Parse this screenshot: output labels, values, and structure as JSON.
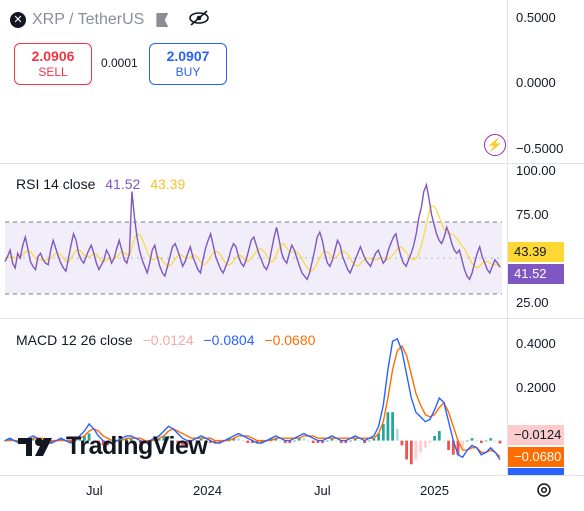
{
  "header": {
    "symbol": "XRP / TetherUS",
    "sell_price": "2.0906",
    "sell_label": "SELL",
    "spread": "0.0001",
    "buy_price": "2.0907",
    "buy_label": "BUY"
  },
  "price_scale": [
    "0.5000",
    "0.0000",
    "−0.5000"
  ],
  "rsi": {
    "label": "RSI 14 close",
    "value1": "41.52",
    "value2": "43.39",
    "scale": [
      "100.00",
      "75.00",
      "25.00"
    ],
    "badge1": "43.39",
    "badge2": "41.52"
  },
  "macd": {
    "label": "MACD 12 26 close",
    "value1": "−0.0124",
    "value2": "−0.0804",
    "value3": "−0.0680",
    "scale": [
      "0.4000",
      "0.2000"
    ],
    "badge1": "−0.0124",
    "badge2": "−0.0680"
  },
  "time_axis": [
    "Jul",
    "2024",
    "Jul",
    "2025"
  ],
  "brand": "TradingView",
  "colors": {
    "sell": "#f23645",
    "buy": "#2962ff",
    "rsi_line": "#7e57c2",
    "rsi_ma": "#fdd835",
    "macd_line": "#2962ff",
    "signal_line": "#ff6d00",
    "hist_pos": "#26a69a",
    "hist_neg": "#ef5350"
  },
  "chart_data": {
    "type": "line",
    "title": "XRP / TetherUS",
    "x_labels": [
      "Jul",
      "2024",
      "Jul",
      "2025"
    ],
    "rsi": {
      "name": "RSI 14 close",
      "ylim": [
        25,
        100
      ],
      "bands": [
        70,
        30
      ],
      "values": [
        45,
        48,
        52,
        44,
        41,
        50,
        47,
        55,
        60,
        53,
        45,
        42,
        40,
        48,
        50,
        46,
        44,
        43,
        52,
        58,
        53,
        48,
        44,
        41,
        39,
        47,
        55,
        62,
        58,
        50,
        46,
        44,
        48,
        52,
        55,
        50,
        44,
        40,
        43,
        46,
        52,
        49,
        44,
        47,
        53,
        58,
        52,
        46,
        44,
        50,
        88,
        72,
        60,
        52,
        46,
        42,
        38,
        44,
        52,
        55,
        48,
        42,
        38,
        36,
        42,
        48,
        54,
        56,
        52,
        47,
        42,
        45,
        50,
        54,
        48,
        44,
        40,
        38,
        46,
        53,
        58,
        62,
        55,
        48,
        44,
        40,
        38,
        42,
        46,
        52,
        56,
        54,
        48,
        44,
        42,
        46,
        52,
        58,
        60,
        55,
        50,
        46,
        42,
        40,
        44,
        52,
        60,
        66,
        58,
        50,
        46,
        44,
        50,
        55,
        52,
        47,
        42,
        38,
        36,
        34,
        38,
        45,
        52,
        60,
        63,
        58,
        50,
        44,
        42,
        46,
        52,
        58,
        55,
        48,
        44,
        40,
        38,
        42,
        46,
        50,
        54,
        50,
        46,
        44,
        42,
        46,
        50,
        52,
        48,
        44,
        46,
        52,
        56,
        60,
        62,
        54,
        48,
        44,
        42,
        46,
        50,
        55,
        62,
        72,
        78,
        88,
        92,
        84,
        74,
        68,
        62,
        58,
        56,
        60,
        66,
        62,
        56,
        52,
        50,
        52,
        46,
        40,
        36,
        34,
        38,
        44,
        50,
        54,
        48,
        44,
        40,
        38,
        42,
        46,
        44,
        41.5
      ],
      "ma_values": [
        47,
        47,
        48,
        48,
        47,
        47,
        48,
        49,
        51,
        52,
        51,
        49,
        47,
        46,
        46,
        46,
        46,
        46,
        47,
        49,
        50,
        50,
        49,
        47,
        45,
        45,
        47,
        50,
        52,
        52,
        51,
        49,
        48,
        48,
        49,
        50,
        49,
        47,
        45,
        45,
        46,
        47,
        47,
        47,
        48,
        50,
        51,
        50,
        49,
        49,
        55,
        60,
        62,
        61,
        58,
        54,
        50,
        47,
        46,
        47,
        48,
        47,
        45,
        43,
        42,
        43,
        45,
        47,
        49,
        49,
        48,
        47,
        47,
        48,
        49,
        48,
        46,
        44,
        43,
        44,
        46,
        49,
        51,
        51,
        50,
        48,
        45,
        43,
        43,
        44,
        46,
        48,
        49,
        48,
        46,
        45,
        46,
        48,
        50,
        52,
        53,
        52,
        50,
        47,
        45,
        45,
        48,
        52,
        55,
        56,
        54,
        52,
        51,
        51,
        51,
        50,
        48,
        45,
        42,
        40,
        39,
        40,
        43,
        46,
        49,
        51,
        51,
        50,
        48,
        47,
        48,
        50,
        51,
        51,
        50,
        48,
        45,
        43,
        42,
        43,
        45,
        46,
        47,
        47,
        46,
        46,
        46,
        47,
        47,
        47,
        46,
        47,
        49,
        51,
        53,
        54,
        53,
        51,
        49,
        47,
        46,
        47,
        49,
        54,
        60,
        67,
        74,
        79,
        79,
        77,
        73,
        69,
        65,
        63,
        62,
        62,
        61,
        59,
        57,
        55,
        53,
        50,
        47,
        44,
        42,
        41,
        42,
        44,
        45,
        45,
        44,
        43,
        43,
        43,
        43.4
      ]
    },
    "macd": {
      "name": "MACD 12 26 close",
      "ylim": [
        -0.12,
        0.48
      ],
      "macd_values": [
        0.0,
        0.01,
        0.0,
        -0.01,
        0.0,
        0.01,
        0.02,
        0.01,
        0.0,
        -0.01,
        -0.01,
        0.0,
        0.01,
        0.0,
        -0.01,
        0.0,
        0.02,
        0.04,
        0.07,
        0.05,
        0.02,
        0.0,
        -0.01,
        -0.01,
        0.0,
        0.01,
        0.02,
        0.02,
        0.01,
        0.0,
        -0.01,
        0.0,
        0.01,
        0.02,
        0.04,
        0.06,
        0.05,
        0.03,
        0.01,
        0.0,
        0.0,
        0.01,
        0.02,
        0.01,
        0.0,
        -0.01,
        -0.01,
        0.0,
        0.01,
        0.02,
        0.03,
        0.02,
        0.01,
        0.0,
        -0.01,
        -0.01,
        0.0,
        0.01,
        0.02,
        0.01,
        0.0,
        0.0,
        0.01,
        0.02,
        0.03,
        0.02,
        0.01,
        0.0,
        0.0,
        0.01,
        0.02,
        0.01,
        0.0,
        0.0,
        0.01,
        0.02,
        0.01,
        0.0,
        0.01,
        0.02,
        0.06,
        0.15,
        0.3,
        0.42,
        0.43,
        0.38,
        0.28,
        0.18,
        0.12,
        0.1,
        0.08,
        0.09,
        0.13,
        0.18,
        0.16,
        0.08,
        0.0,
        -0.06,
        -0.07,
        -0.04,
        -0.02,
        -0.03,
        -0.06,
        -0.05,
        -0.03,
        -0.05,
        -0.0804
      ],
      "signal_values": [
        0.0,
        0.0,
        0.0,
        0.0,
        0.0,
        0.0,
        0.01,
        0.01,
        0.01,
        0.0,
        0.0,
        0.0,
        0.0,
        0.0,
        0.0,
        0.0,
        0.01,
        0.02,
        0.04,
        0.05,
        0.04,
        0.02,
        0.01,
        0.0,
        0.0,
        0.0,
        0.01,
        0.01,
        0.01,
        0.01,
        0.0,
        0.0,
        0.0,
        0.01,
        0.02,
        0.04,
        0.05,
        0.04,
        0.03,
        0.02,
        0.01,
        0.01,
        0.01,
        0.01,
        0.01,
        0.0,
        0.0,
        0.0,
        0.0,
        0.01,
        0.02,
        0.02,
        0.02,
        0.01,
        0.0,
        0.0,
        0.0,
        0.0,
        0.01,
        0.01,
        0.01,
        0.01,
        0.01,
        0.01,
        0.02,
        0.02,
        0.02,
        0.01,
        0.01,
        0.01,
        0.01,
        0.01,
        0.01,
        0.01,
        0.01,
        0.01,
        0.01,
        0.01,
        0.01,
        0.01,
        0.03,
        0.08,
        0.18,
        0.3,
        0.38,
        0.4,
        0.36,
        0.28,
        0.2,
        0.15,
        0.11,
        0.1,
        0.11,
        0.14,
        0.16,
        0.12,
        0.06,
        0.0,
        -0.04,
        -0.04,
        -0.03,
        -0.03,
        -0.05,
        -0.05,
        -0.04,
        -0.05,
        -0.068
      ]
    }
  }
}
